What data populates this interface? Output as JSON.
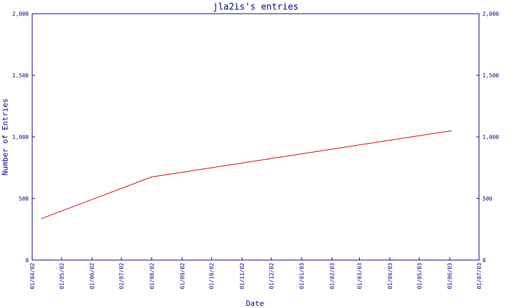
{
  "chart_data": {
    "type": "line",
    "title": "jla2is's entries",
    "xlabel": "Date",
    "ylabel": "Number of Entries",
    "ylim": [
      0,
      2000
    ],
    "yticks": [
      "0",
      "500",
      "1,000",
      "1,500",
      "2,000"
    ],
    "ytick_values": [
      0,
      500,
      1000,
      1500,
      2000
    ],
    "xticks": [
      "01/04/02",
      "01/05/02",
      "01/06/02",
      "01/07/02",
      "01/08/02",
      "01/09/02",
      "01/10/02",
      "01/11/02",
      "01/12/02",
      "01/01/03",
      "01/02/03",
      "01/03/03",
      "01/04/03",
      "01/05/03",
      "01/06/03",
      "01/07/03"
    ],
    "xlim": [
      "2002-04-01",
      "2003-07-01"
    ],
    "grid": false,
    "series": [
      {
        "color": "#cc0000",
        "x": [
          "2002-04-10",
          "2002-08-01",
          "2003-06-03"
        ],
        "y": [
          335,
          675,
          1050
        ]
      }
    ],
    "colors": {
      "frame": "#000080",
      "axis_text": "#000080",
      "line": "#cc0000"
    }
  }
}
